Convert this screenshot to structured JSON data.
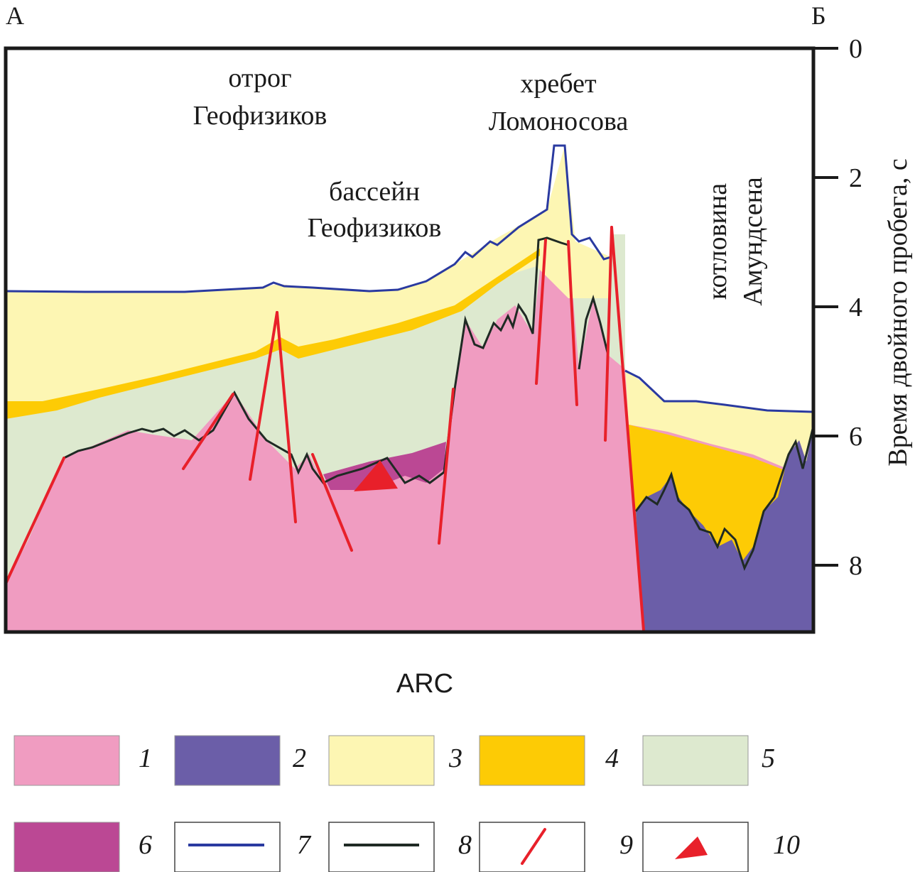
{
  "corner_left": "А",
  "corner_right": "Б",
  "axis": {
    "title": "Время двойного пробега, с",
    "ticks": [
      "0",
      "2",
      "4",
      "6",
      "8"
    ]
  },
  "labels": {
    "spur_line1": "отрог",
    "spur_line2": "Геофизиков",
    "ridge_line1": "хребет",
    "ridge_line2": "Ломоносова",
    "basin_line1": "бассейн",
    "basin_line2": "Геофизиков",
    "amundsen_line1": "котловина",
    "amundsen_line2": "Амундсена"
  },
  "caption": "ARC",
  "legend": [
    {
      "num": "1",
      "kind": "fill",
      "color": "#f09cc1"
    },
    {
      "num": "2",
      "kind": "fill",
      "color": "#6b5ea8"
    },
    {
      "num": "3",
      "kind": "fill",
      "color": "#fdf6b3"
    },
    {
      "num": "4",
      "kind": "fill",
      "color": "#fdcb05"
    },
    {
      "num": "5",
      "kind": "fill",
      "color": "#dde9cf"
    },
    {
      "num": "6",
      "kind": "fill",
      "color": "#bb4894"
    },
    {
      "num": "7",
      "kind": "line",
      "color": "#2a3aa0"
    },
    {
      "num": "8",
      "kind": "line",
      "color": "#1f2a24"
    },
    {
      "num": "9",
      "kind": "fault",
      "color": "#e8202a"
    },
    {
      "num": "10",
      "kind": "triangle",
      "color": "#e8202a"
    }
  ]
}
